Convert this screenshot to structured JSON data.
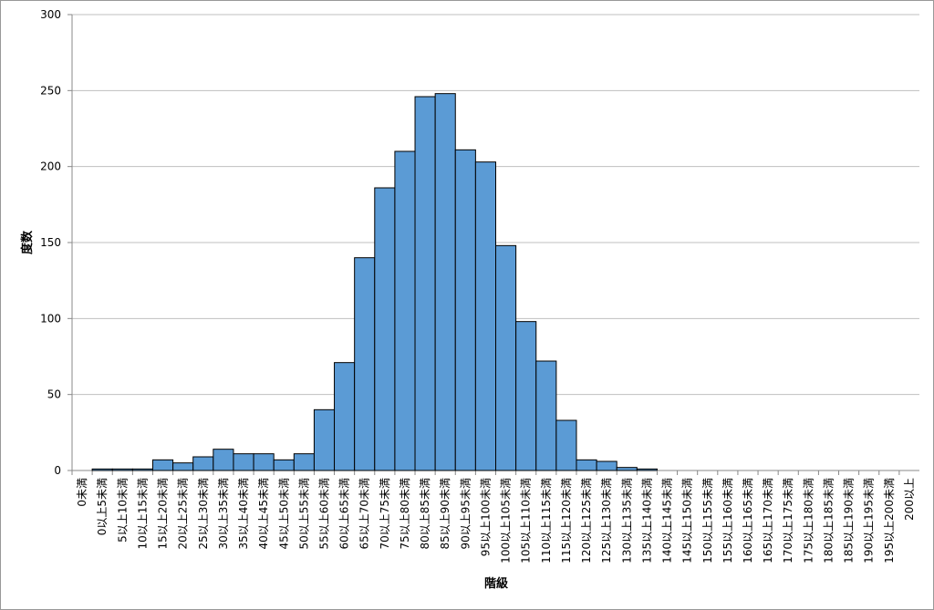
{
  "chart_data": {
    "type": "bar",
    "xlabel": "階級",
    "ylabel": "度数",
    "categories": [
      "0未満",
      "0以上5未満",
      "5以上10未満",
      "10以上15未満",
      "15以上20未満",
      "20以上25未満",
      "25以上30未満",
      "30以上35未満",
      "35以上40未満",
      "40以上45未満",
      "45以上50未満",
      "50以上55未満",
      "55以上60未満",
      "60以上65未満",
      "65以上70未満",
      "70以上75未満",
      "75以上80未満",
      "80以上85未満",
      "85以上90未満",
      "90以上95未満",
      "95以上100未満",
      "100以上105未満",
      "105以上110未満",
      "110以上115未満",
      "115以上120未満",
      "120以上125未満",
      "125以上130未満",
      "130以上135未満",
      "135以上140未満",
      "140以上145未満",
      "145以上150未満",
      "150以上155未満",
      "155以上160未満",
      "160以上165未満",
      "165以上170未満",
      "170以上175未満",
      "175以上180未満",
      "180以上185未満",
      "185以上190未満",
      "190以上195未満",
      "195以上200未満",
      "200以上"
    ],
    "values": [
      0,
      1,
      1,
      1,
      7,
      5,
      9,
      14,
      11,
      11,
      7,
      11,
      40,
      71,
      140,
      186,
      210,
      246,
      248,
      211,
      203,
      148,
      98,
      72,
      33,
      7,
      6,
      2,
      1,
      0,
      0,
      0,
      0,
      0,
      0,
      0,
      0,
      0,
      0,
      0,
      0,
      0
    ],
    "color": "#5b9bd5",
    "ylim": [
      0,
      300
    ],
    "yticks": [
      0,
      50,
      100,
      150,
      200,
      250,
      300
    ],
    "grid": true
  }
}
